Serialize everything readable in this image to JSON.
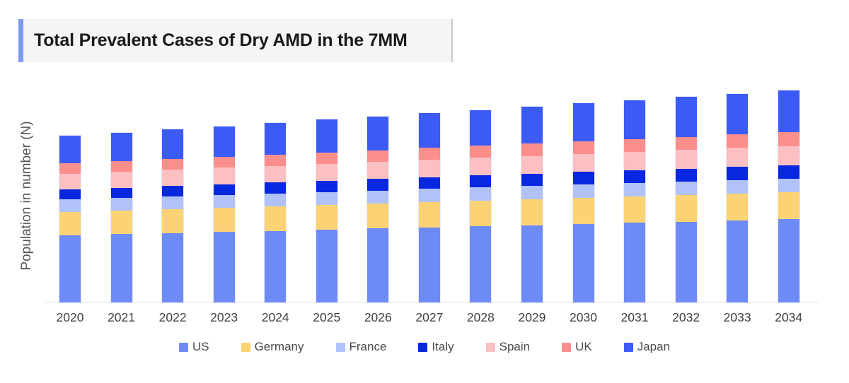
{
  "header": {
    "title": "Total Prevalent Cases of Dry AMD in the 7MM",
    "accent_color": "#7D9BF3"
  },
  "chart": {
    "y_axis_label": "Population in number (N)"
  },
  "chart_data": {
    "type": "bar",
    "stacked": true,
    "title": "Total Prevalent Cases of Dry AMD in the 7MM",
    "xlabel": "",
    "ylabel": "Population in number (N)",
    "ylim": [
      0,
      320
    ],
    "y_ticks_visible": false,
    "grid": false,
    "legend_position": "bottom",
    "categories": [
      "2020",
      "2021",
      "2022",
      "2023",
      "2024",
      "2025",
      "2026",
      "2027",
      "2028",
      "2029",
      "2030",
      "2031",
      "2032",
      "2033",
      "2034"
    ],
    "series": [
      {
        "name": "US",
        "color": "#6D8BF7",
        "values": [
          95.0,
          96.6,
          98.2,
          99.8,
          101.5,
          103.1,
          104.7,
          106.3,
          107.9,
          109.5,
          111.1,
          112.8,
          114.4,
          116.0,
          117.6
        ]
      },
      {
        "name": "Germany",
        "color": "#FCD374",
        "values": [
          33.3,
          33.6,
          34.0,
          34.3,
          34.6,
          35.0,
          35.3,
          35.7,
          36.0,
          36.3,
          36.7,
          37.0,
          37.3,
          37.7,
          38.0
        ]
      },
      {
        "name": "France",
        "color": "#B1C2F9",
        "values": [
          17.3,
          17.5,
          17.7,
          17.8,
          18.0,
          18.2,
          18.4,
          18.6,
          18.7,
          18.9,
          19.1,
          19.3,
          19.4,
          19.6,
          19.8
        ]
      },
      {
        "name": "Italy",
        "color": "#0728E0",
        "values": [
          14.4,
          14.7,
          15.1,
          15.4,
          15.7,
          16.1,
          16.4,
          16.8,
          17.1,
          17.4,
          17.8,
          18.1,
          18.4,
          18.8,
          19.1
        ]
      },
      {
        "name": "Spain",
        "color": "#FCBFC2",
        "values": [
          22.3,
          22.6,
          23.0,
          23.3,
          23.6,
          24.0,
          24.3,
          24.7,
          25.0,
          25.3,
          25.7,
          26.0,
          26.3,
          26.7,
          27.0
        ]
      },
      {
        "name": "UK",
        "color": "#FC8E8C",
        "values": [
          14.3,
          14.7,
          15.0,
          15.4,
          15.7,
          16.1,
          16.4,
          16.8,
          17.2,
          17.5,
          17.9,
          18.2,
          18.6,
          18.9,
          19.3
        ]
      },
      {
        "name": "Japan",
        "color": "#3C5BF6",
        "values": [
          39.0,
          40.4,
          41.9,
          43.3,
          44.8,
          46.2,
          47.7,
          49.1,
          50.5,
          52.0,
          53.4,
          54.9,
          56.3,
          57.8,
          59.2
        ]
      }
    ]
  }
}
